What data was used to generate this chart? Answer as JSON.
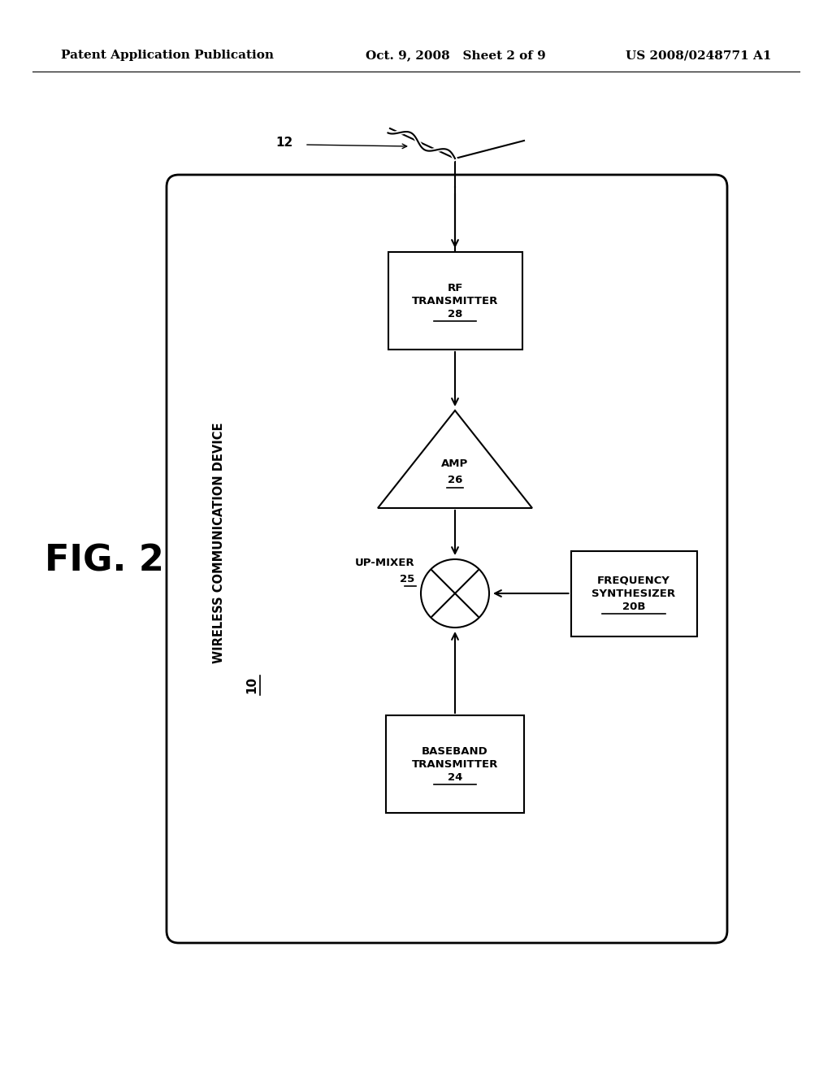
{
  "bg_color": "#ffffff",
  "header_left": "Patent Application Publication",
  "header_mid": "Oct. 9, 2008   Sheet 2 of 9",
  "header_right": "US 2008/0248771 A1",
  "fig_label": "FIG. 2",
  "device_label": "WIRELESS COMMUNICATION DEVICE",
  "device_num": "10",
  "antenna_label": "12",
  "font_size_header": 11,
  "font_size_fig": 32,
  "font_size_box": 9.5,
  "font_size_device": 10.5
}
